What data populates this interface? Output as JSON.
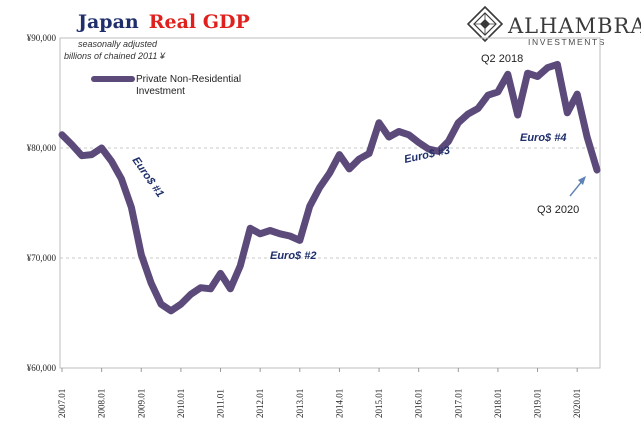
{
  "chart_data": {
    "type": "line",
    "title_part1": "Japan",
    "title_part2": "Real GDP",
    "subtitle_line1": "seasonally adjusted",
    "subtitle_line2": "billions of chained 2011 ¥",
    "ylim": [
      60000,
      90000
    ],
    "y_ticks": [
      "¥90,000",
      "¥80,000",
      "¥70,000",
      "¥60,000"
    ],
    "y_tick_values": [
      90000,
      80000,
      70000,
      60000
    ],
    "x_tick_labels": [
      "2007.01",
      "2008.01",
      "2009.01",
      "2010.01",
      "2011.01",
      "2012.01",
      "2013.01",
      "2014.01",
      "2015.01",
      "2016.01",
      "2017.01",
      "2018.01",
      "2019.01",
      "2020.01"
    ],
    "x_tick_index": [
      0,
      4,
      8,
      12,
      16,
      20,
      24,
      28,
      32,
      36,
      40,
      44,
      48,
      52
    ],
    "series": [
      {
        "name": "Private Non-Residential Investment",
        "color": "#5b4a7a",
        "values": [
          81200,
          80300,
          79300,
          79400,
          80000,
          78800,
          77200,
          74600,
          70300,
          67700,
          65800,
          65200,
          65800,
          66700,
          67300,
          67200,
          68600,
          67200,
          69300,
          72700,
          72200,
          72500,
          72200,
          72000,
          71600,
          74700,
          76400,
          77700,
          79400,
          78100,
          79000,
          79500,
          82300,
          81000,
          81500,
          81200,
          80500,
          79900,
          79700,
          80600,
          82300,
          83100,
          83600,
          84800,
          85100,
          86700,
          83000,
          86800,
          86500,
          87300,
          87600,
          83200,
          84900,
          81000,
          78000
        ]
      }
    ],
    "legend_label_line1": "Private Non-Residential",
    "legend_label_line2": "Investment",
    "annotations": {
      "euro1": "Euro$ #1",
      "euro2": "Euro$ #2",
      "euro3": "Euro$ #3",
      "euro4": "Euro$ #4",
      "q2_2018": "Q2 2018",
      "q3_2020": "Q3 2020"
    },
    "grid": "horizontal dashed"
  },
  "brand": {
    "name": "ALHAMBRA",
    "sub": "INVESTMENTS"
  }
}
